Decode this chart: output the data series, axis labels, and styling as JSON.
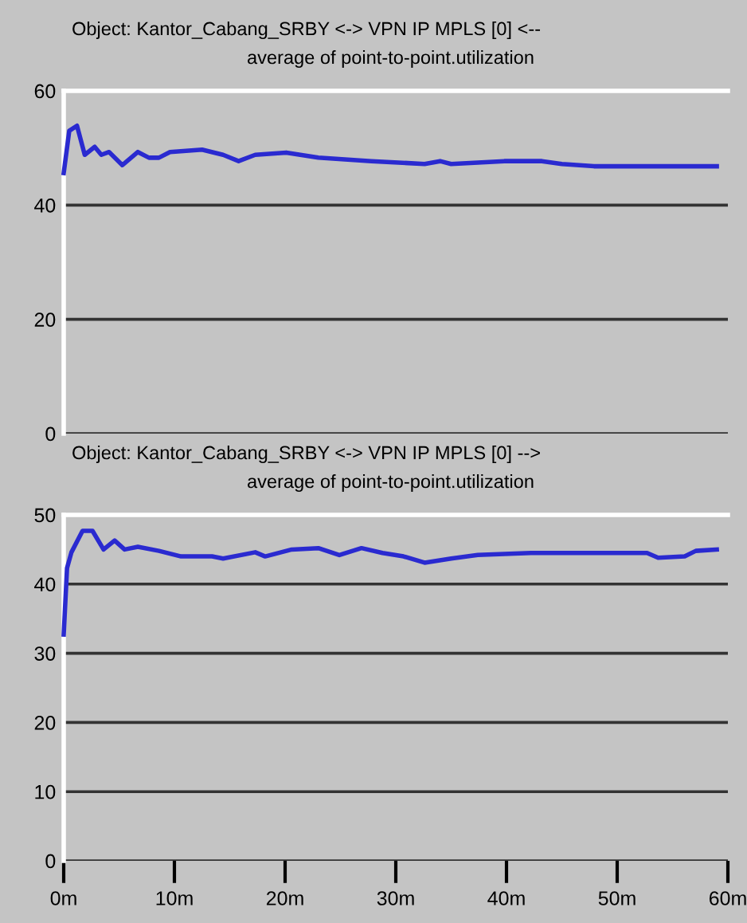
{
  "chart_data": [
    {
      "type": "line",
      "title": "Object: Kantor_Cabang_SRBY <-> VPN IP MPLS [0] <--",
      "subtitle": "average of point-to-point.utilization",
      "x": [
        0,
        0.5,
        1.2,
        1.9,
        2.8,
        3.4,
        4.1,
        5.3,
        6.7,
        7.7,
        8.6,
        9.6,
        12.5,
        14.4,
        15.8,
        17.3,
        20.1,
        23,
        27.8,
        32.6,
        34,
        35,
        39.8,
        43.2,
        45,
        47.9,
        59
      ],
      "series": [
        {
          "color": "#2a2ad0",
          "values": [
            45.6,
            53,
            53.9,
            48.8,
            50.2,
            48.8,
            49.3,
            47,
            49.3,
            48.3,
            48.3,
            49.3,
            49.7,
            48.8,
            47.7,
            48.8,
            49.2,
            48.3,
            47.7,
            47.2,
            47.7,
            47.2,
            47.7,
            47.7,
            47.2,
            46.8,
            46.8
          ]
        }
      ],
      "xlim": [
        0,
        60
      ],
      "ylim": [
        0,
        60
      ],
      "yticks": [
        0,
        20,
        40,
        60
      ],
      "grid": "y",
      "tick_labels": "y",
      "legend": false
    },
    {
      "type": "line",
      "title": "Object: Kantor_Cabang_SRBY <-> VPN IP MPLS [0] -->",
      "subtitle": "average of point-to-point.utilization",
      "x": [
        0,
        0.3,
        0.7,
        1.7,
        2.6,
        3.6,
        4.6,
        5.5,
        6.7,
        8.6,
        10.6,
        13.4,
        14.4,
        17.3,
        18.2,
        20.6,
        23,
        24.9,
        26.9,
        28.8,
        30.7,
        32.6,
        35,
        37.4,
        42.2,
        47,
        52.7,
        53.7,
        56.1,
        57.1,
        59
      ],
      "series": [
        {
          "color": "#2a2ad0",
          "values": [
            32.7,
            42.3,
            44.6,
            47.7,
            47.7,
            45,
            46.3,
            45,
            45.4,
            44.8,
            44,
            44,
            43.7,
            44.6,
            44,
            45,
            45.2,
            44.2,
            45.2,
            44.5,
            44,
            43.1,
            43.7,
            44.2,
            44.5,
            44.5,
            44.5,
            43.8,
            44,
            44.8,
            45
          ]
        }
      ],
      "xlim": [
        0,
        60
      ],
      "xticks": [
        {
          "value": 0,
          "label": "0m"
        },
        {
          "value": 10,
          "label": "10m"
        },
        {
          "value": 20,
          "label": "20m"
        },
        {
          "value": 30,
          "label": "30m"
        },
        {
          "value": 40,
          "label": "40m"
        },
        {
          "value": 50,
          "label": "50m"
        },
        {
          "value": 60,
          "label": "60m"
        }
      ],
      "ylim": [
        0,
        50
      ],
      "yticks": [
        0,
        10,
        20,
        30,
        40,
        50
      ],
      "grid": "y",
      "legend": false
    }
  ]
}
